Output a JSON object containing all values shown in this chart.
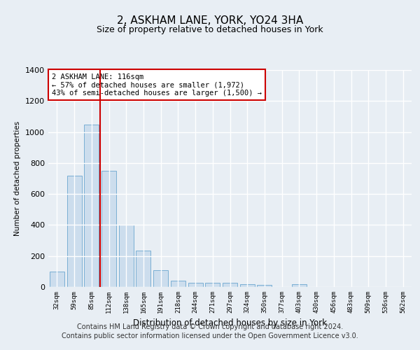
{
  "title": "2, ASKHAM LANE, YORK, YO24 3HA",
  "subtitle": "Size of property relative to detached houses in York",
  "xlabel": "Distribution of detached houses by size in York",
  "ylabel": "Number of detached properties",
  "categories": [
    "32sqm",
    "59sqm",
    "85sqm",
    "112sqm",
    "138sqm",
    "165sqm",
    "191sqm",
    "218sqm",
    "244sqm",
    "271sqm",
    "297sqm",
    "324sqm",
    "350sqm",
    "377sqm",
    "403sqm",
    "430sqm",
    "456sqm",
    "483sqm",
    "509sqm",
    "536sqm",
    "562sqm"
  ],
  "values": [
    100,
    720,
    1050,
    750,
    400,
    235,
    110,
    40,
    25,
    25,
    25,
    20,
    15,
    0,
    20,
    0,
    0,
    0,
    0,
    0,
    0
  ],
  "bar_color": "#ccdded",
  "bar_edgecolor": "#7aafd4",
  "red_line_x": 2.5,
  "ylim": [
    0,
    1400
  ],
  "yticks": [
    0,
    200,
    400,
    600,
    800,
    1000,
    1200,
    1400
  ],
  "annotation_text": "2 ASKHAM LANE: 116sqm\n← 57% of detached houses are smaller (1,972)\n43% of semi-detached houses are larger (1,500) →",
  "annotation_box_color": "#ffffff",
  "annotation_box_edgecolor": "#cc0000",
  "red_line_color": "#cc0000",
  "footer_line1": "Contains HM Land Registry data © Crown copyright and database right 2024.",
  "footer_line2": "Contains public sector information licensed under the Open Government Licence v3.0.",
  "background_color": "#e8eef4",
  "plot_bg_color": "#e8eef4",
  "grid_color": "#ffffff",
  "title_fontsize": 11,
  "subtitle_fontsize": 9,
  "footer_fontsize": 7
}
